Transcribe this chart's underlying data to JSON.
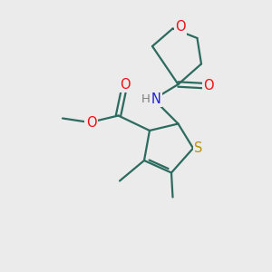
{
  "bg_color": "#ebebeb",
  "atom_colors": {
    "C": "#2d6b5e",
    "H": "#808080",
    "N": "#2020cc",
    "O": "#ee1111",
    "S": "#b8900a"
  },
  "bond_color": "#2d6b5e",
  "bond_width": 1.6,
  "font_size_atom": 10,
  "title": "methyl 4,5-dimethyl-2-[(tetrahydro-2-furanylcarbonyl)amino]-3-thiophenecarboxylate"
}
